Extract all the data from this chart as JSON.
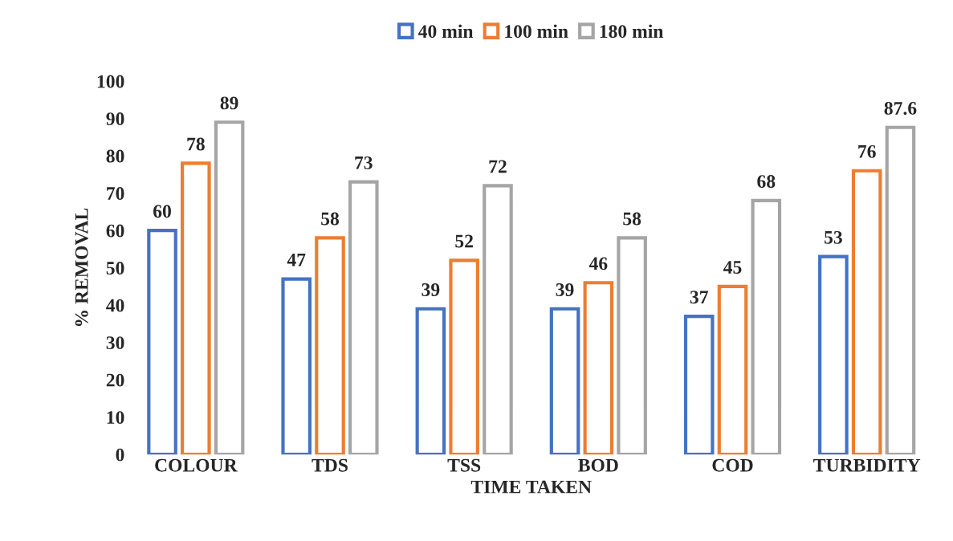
{
  "chart_data": {
    "type": "bar",
    "xlabel": "TIME TAKEN",
    "ylabel": "% REMOVAL",
    "categories": [
      "COLOUR",
      "TDS",
      "TSS",
      "BOD",
      "COD",
      "TURBIDITY"
    ],
    "series": [
      {
        "name": "40 min",
        "color": "#4472c4",
        "values": [
          60,
          47,
          39,
          39,
          37,
          53
        ]
      },
      {
        "name": "100 min",
        "color": "#ed7d31",
        "values": [
          78,
          58,
          52,
          46,
          45,
          76
        ]
      },
      {
        "name": "180 min",
        "color": "#a5a5a5",
        "values": [
          89,
          73,
          72,
          58,
          68,
          87.6
        ]
      }
    ],
    "ylim": [
      0,
      100
    ],
    "yticks": [
      0,
      10,
      20,
      30,
      40,
      50,
      60,
      70,
      80,
      90,
      100
    ],
    "data_labels": true,
    "grid": false,
    "legend": "top"
  }
}
